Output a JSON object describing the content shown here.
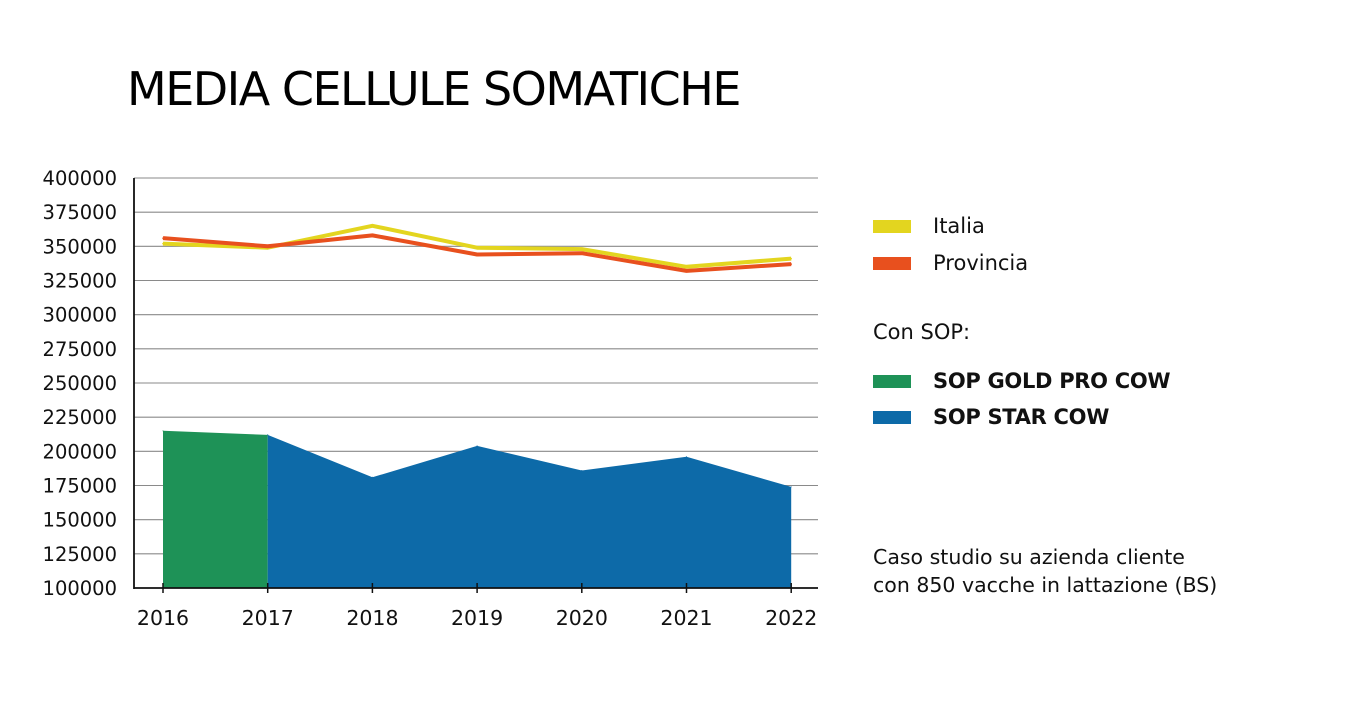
{
  "chart_data": {
    "type": "line+area",
    "title": "MEDIA CELLULE SOMATICHE",
    "categories": [
      "2016",
      "2017",
      "2018",
      "2019",
      "2020",
      "2021",
      "2022"
    ],
    "ylim": [
      100000,
      400000
    ],
    "yticks": [
      "400000",
      "375000",
      "350000",
      "325000",
      "300000",
      "275000",
      "250000",
      "225000",
      "200000",
      "175000",
      "150000",
      "125000",
      "100000"
    ],
    "ytick_values": [
      400000,
      375000,
      350000,
      325000,
      300000,
      275000,
      250000,
      225000,
      200000,
      175000,
      150000,
      125000,
      100000
    ],
    "grid": "horizontal",
    "series": [
      {
        "name": "Italia",
        "kind": "line",
        "color": "#e3d51f",
        "values": [
          352000,
          349000,
          365000,
          349000,
          348000,
          335000,
          341000
        ]
      },
      {
        "name": "Provincia",
        "kind": "line",
        "color": "#e8501e",
        "values": [
          356000,
          350000,
          358000,
          344000,
          345000,
          332000,
          337000
        ]
      },
      {
        "name": "SOP GOLD PRO COW",
        "kind": "area",
        "color": "#1e9257",
        "x": [
          "2016",
          "2017"
        ],
        "values": [
          215000,
          212000
        ]
      },
      {
        "name": "SOP STAR COW",
        "kind": "area",
        "color": "#0d6aa8",
        "x": [
          "2017",
          "2018",
          "2019",
          "2020",
          "2021",
          "2022"
        ],
        "values": [
          212000,
          181000,
          204000,
          186000,
          196000,
          174000
        ]
      }
    ]
  },
  "legend": {
    "items": [
      {
        "label": "Italia",
        "color": "#e3d51f",
        "bold": false
      },
      {
        "label": "Provincia",
        "color": "#e8501e",
        "bold": false
      }
    ],
    "group_label": "Con SOP:",
    "group_items": [
      {
        "label": "SOP GOLD PRO COW",
        "color": "#1e9257",
        "bold": true
      },
      {
        "label": "SOP STAR COW",
        "color": "#0d6aa8",
        "bold": true
      }
    ]
  },
  "note": {
    "line1": "Caso studio su azienda cliente",
    "line2": "con 850 vacche in lattazione (BS)"
  }
}
